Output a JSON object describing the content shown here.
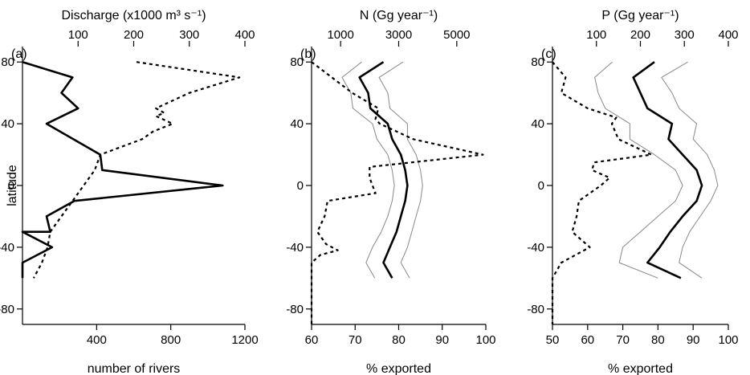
{
  "chart_data": [
    {
      "type": "line",
      "panel_label": "(a)",
      "y_axis": {
        "label": "latitude",
        "ylim": [
          -90,
          90
        ],
        "ticks": [
          80,
          40,
          0,
          -40,
          -80
        ]
      },
      "x_bottom": {
        "label": "number of rivers",
        "xlim": [
          0,
          1200
        ],
        "ticks": [
          400,
          800,
          1200
        ]
      },
      "x_top": {
        "label": "Discharge (x1000 m³ s⁻¹)",
        "xlim": [
          0,
          400
        ],
        "ticks": [
          100,
          200,
          300,
          400
        ]
      },
      "series": [
        {
          "style": "solid",
          "axis": "bottom",
          "stroke": "#000000",
          "points": [
            [
              0,
              80
            ],
            [
              270,
              70
            ],
            [
              210,
              60
            ],
            [
              300,
              50
            ],
            [
              130,
              40
            ],
            [
              420,
              20
            ],
            [
              430,
              10
            ],
            [
              1080,
              0
            ],
            [
              280,
              -10
            ],
            [
              130,
              -20
            ],
            [
              150,
              -30
            ],
            [
              0,
              -30
            ],
            [
              160,
              -40
            ],
            [
              0,
              -50
            ],
            [
              0,
              -60
            ]
          ]
        },
        {
          "style": "dashed",
          "axis": "top",
          "stroke": "#000000",
          "points": [
            [
              205,
              80
            ],
            [
              390,
              70
            ],
            [
              300,
              60
            ],
            [
              240,
              50
            ],
            [
              255,
              47
            ],
            [
              240,
              45
            ],
            [
              270,
              40
            ],
            [
              235,
              35
            ],
            [
              215,
              30
            ],
            [
              140,
              20
            ],
            [
              130,
              10
            ],
            [
              110,
              0
            ],
            [
              70,
              -20
            ],
            [
              50,
              -30
            ],
            [
              45,
              -40
            ],
            [
              35,
              -50
            ],
            [
              20,
              -60
            ]
          ]
        }
      ]
    },
    {
      "type": "line",
      "panel_label": "(b)",
      "y_axis": {
        "ylim": [
          -90,
          90
        ],
        "ticks": [
          80,
          40,
          0,
          -40,
          -80
        ]
      },
      "x_bottom": {
        "label": "% exported",
        "xlim": [
          60,
          100
        ],
        "ticks": [
          60,
          70,
          80,
          90,
          100
        ]
      },
      "x_top": {
        "label": "N (Gg year⁻¹)",
        "xlim": [
          0,
          6000
        ],
        "ticks": [
          1000,
          3000,
          5000
        ]
      },
      "series": [
        {
          "style": "solid",
          "axis": "bottom",
          "stroke": "#000000",
          "points": [
            [
              76.5,
              80
            ],
            [
              71,
              70
            ],
            [
              73,
              60
            ],
            [
              73.5,
              50
            ],
            [
              77.5,
              40
            ],
            [
              78.5,
              30
            ],
            [
              80.5,
              20
            ],
            [
              81.5,
              10
            ],
            [
              82,
              0
            ],
            [
              81.5,
              -10
            ],
            [
              80.5,
              -20
            ],
            [
              79.5,
              -30
            ],
            [
              78,
              -40
            ],
            [
              76.5,
              -50
            ],
            [
              78.5,
              -60
            ]
          ]
        },
        {
          "style": "thin",
          "axis": "bottom",
          "stroke": "#888888",
          "points": [
            [
              71.5,
              80
            ],
            [
              67,
              70
            ],
            [
              69,
              60
            ],
            [
              69.5,
              50
            ],
            [
              74,
              40
            ],
            [
              75,
              30
            ],
            [
              77.5,
              20
            ],
            [
              78.5,
              10
            ],
            [
              79,
              0
            ],
            [
              78.5,
              -10
            ],
            [
              77.5,
              -20
            ],
            [
              76,
              -30
            ],
            [
              74,
              -40
            ],
            [
              72.5,
              -50
            ],
            [
              74.5,
              -60
            ]
          ]
        },
        {
          "style": "thin",
          "axis": "bottom",
          "stroke": "#888888",
          "points": [
            [
              81,
              80
            ],
            [
              75.5,
              70
            ],
            [
              77.5,
              60
            ],
            [
              78,
              50
            ],
            [
              82,
              40
            ],
            [
              82,
              30
            ],
            [
              84,
              20
            ],
            [
              85,
              10
            ],
            [
              85.5,
              0
            ],
            [
              85,
              -10
            ],
            [
              84,
              -20
            ],
            [
              83,
              -30
            ],
            [
              82,
              -40
            ],
            [
              80.5,
              -50
            ],
            [
              82.5,
              -60
            ]
          ]
        },
        {
          "style": "dashed",
          "axis": "top",
          "stroke": "#000000",
          "points": [
            [
              0,
              80
            ],
            [
              700,
              70
            ],
            [
              1400,
              60
            ],
            [
              2300,
              50
            ],
            [
              2200,
              43
            ],
            [
              2350,
              40
            ],
            [
              3500,
              30
            ],
            [
              5900,
              20
            ],
            [
              2000,
              12
            ],
            [
              2000,
              5
            ],
            [
              2100,
              0
            ],
            [
              2200,
              -5
            ],
            [
              550,
              -10
            ],
            [
              450,
              -20
            ],
            [
              200,
              -30
            ],
            [
              500,
              -38
            ],
            [
              900,
              -42
            ],
            [
              300,
              -45
            ],
            [
              0,
              -50
            ],
            [
              0,
              -60
            ],
            [
              0,
              -90
            ]
          ]
        }
      ]
    },
    {
      "type": "line",
      "panel_label": "(c)",
      "y_axis": {
        "ylim": [
          -90,
          90
        ],
        "ticks": [
          80,
          40,
          0,
          -40,
          -80
        ]
      },
      "x_bottom": {
        "label": "% exported",
        "xlim": [
          50,
          100
        ],
        "ticks": [
          50,
          60,
          70,
          80,
          90,
          100
        ]
      },
      "x_top": {
        "label": "P (Gg year⁻¹)",
        "xlim": [
          0,
          400
        ],
        "ticks": [
          100,
          200,
          300,
          400
        ]
      },
      "series": [
        {
          "style": "solid",
          "axis": "bottom",
          "stroke": "#000000",
          "points": [
            [
              79,
              80
            ],
            [
              73,
              70
            ],
            [
              75,
              60
            ],
            [
              77,
              50
            ],
            [
              84,
              40
            ],
            [
              83,
              30
            ],
            [
              87,
              20
            ],
            [
              91,
              10
            ],
            [
              92.5,
              0
            ],
            [
              91,
              -10
            ],
            [
              87,
              -20
            ],
            [
              83.5,
              -30
            ],
            [
              80.5,
              -40
            ],
            [
              77,
              -50
            ],
            [
              86.5,
              -60
            ]
          ]
        },
        {
          "style": "thin",
          "axis": "bottom",
          "stroke": "#888888",
          "points": [
            [
              67,
              80
            ],
            [
              62,
              70
            ],
            [
              63,
              60
            ],
            [
              65,
              50
            ],
            [
              72,
              40
            ],
            [
              72,
              30
            ],
            [
              79,
              20
            ],
            [
              85,
              10
            ],
            [
              87,
              0
            ],
            [
              85,
              -10
            ],
            [
              80,
              -20
            ],
            [
              75,
              -30
            ],
            [
              70,
              -40
            ],
            [
              69,
              -50
            ],
            [
              80,
              -60
            ]
          ]
        },
        {
          "style": "thin",
          "axis": "bottom",
          "stroke": "#888888",
          "points": [
            [
              88.5,
              80
            ],
            [
              81,
              70
            ],
            [
              84,
              60
            ],
            [
              86,
              50
            ],
            [
              91,
              40
            ],
            [
              90,
              30
            ],
            [
              94,
              20
            ],
            [
              96,
              10
            ],
            [
              97,
              0
            ],
            [
              95,
              -10
            ],
            [
              92,
              -20
            ],
            [
              89,
              -30
            ],
            [
              87,
              -40
            ],
            [
              86,
              -50
            ],
            [
              92.5,
              -60
            ]
          ]
        },
        {
          "style": "dashed",
          "axis": "top",
          "stroke": "#000000",
          "points": [
            [
              0,
              80
            ],
            [
              30,
              70
            ],
            [
              20,
              60
            ],
            [
              80,
              50
            ],
            [
              145,
              44
            ],
            [
              135,
              40
            ],
            [
              150,
              30
            ],
            [
              225,
              20
            ],
            [
              95,
              15
            ],
            [
              90,
              10
            ],
            [
              130,
              5
            ],
            [
              110,
              0
            ],
            [
              60,
              -10
            ],
            [
              55,
              -20
            ],
            [
              45,
              -30
            ],
            [
              85,
              -40
            ],
            [
              20,
              -50
            ],
            [
              0,
              -60
            ],
            [
              0,
              -90
            ]
          ]
        }
      ]
    }
  ]
}
